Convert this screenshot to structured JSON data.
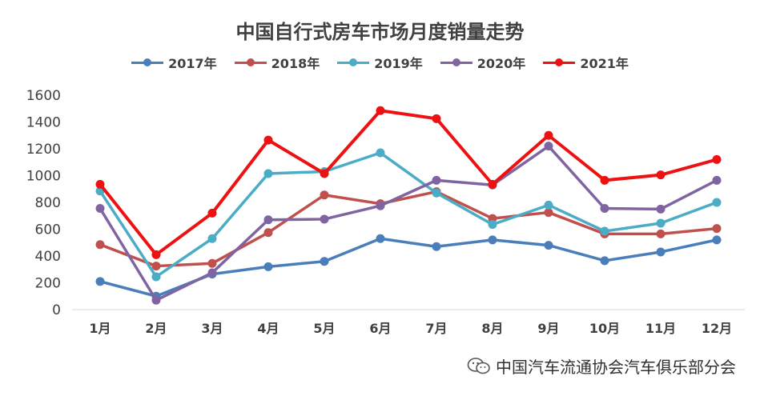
{
  "chart_data": {
    "type": "line",
    "title": "中国自行式房车市场月度销量走势",
    "categories": [
      "1月",
      "2月",
      "3月",
      "4月",
      "5月",
      "6月",
      "7月",
      "8月",
      "9月",
      "10月",
      "11月",
      "12月"
    ],
    "ylim": [
      0,
      1600
    ],
    "yticks": [
      0,
      200,
      400,
      600,
      800,
      1000,
      1200,
      1400,
      1600
    ],
    "grid": false,
    "legend_position": "top",
    "series": [
      {
        "name": "2017年",
        "color": "#4a7ebb",
        "values": [
          210,
          100,
          265,
          320,
          360,
          530,
          470,
          520,
          480,
          365,
          430,
          520
        ]
      },
      {
        "name": "2018年",
        "color": "#c0504d",
        "values": [
          485,
          325,
          345,
          575,
          855,
          790,
          880,
          680,
          725,
          565,
          565,
          605
        ]
      },
      {
        "name": "2019年",
        "color": "#4bacc6",
        "values": [
          885,
          245,
          530,
          1015,
          1030,
          1170,
          870,
          635,
          780,
          585,
          645,
          800
        ]
      },
      {
        "name": "2020年",
        "color": "#8064a2",
        "values": [
          755,
          70,
          275,
          670,
          675,
          775,
          965,
          930,
          1220,
          755,
          750,
          965
        ]
      },
      {
        "name": "2021年",
        "color": "#ee1111",
        "values": [
          935,
          410,
          720,
          1265,
          1015,
          1485,
          1425,
          935,
          1300,
          965,
          1005,
          1120
        ]
      }
    ]
  },
  "watermark": {
    "text": "中国汽车流通协会汽车俱乐部分会",
    "icon": "wechat-icon"
  }
}
